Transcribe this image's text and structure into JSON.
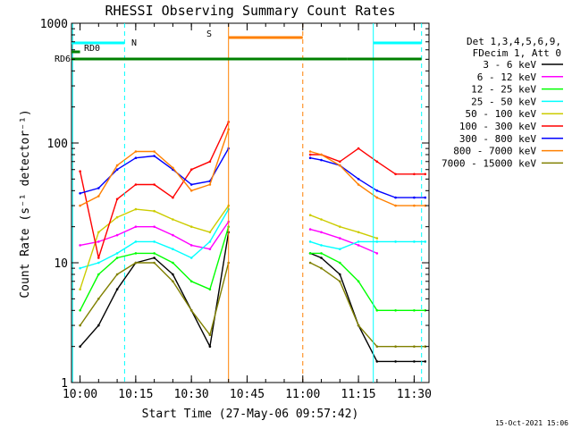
{
  "chart_data": {
    "type": "line",
    "title": "RHESSI Observing Summary Count Rates",
    "xlabel": "Start Time (27-May-06 09:57:42)",
    "ylabel": "Count Rate (s⁻¹ detector⁻¹)",
    "y_scale": "log",
    "ylim": [
      1,
      1000
    ],
    "xlim": [
      "09:57:42",
      "11:34:00"
    ],
    "x_ticks": [
      "10:00",
      "10:15",
      "10:30",
      "10:45",
      "11:00",
      "11:15",
      "11:30"
    ],
    "y_ticks": [
      "1",
      "10",
      "100",
      "1000"
    ],
    "footer_date": "15-Oct-2021 15:06",
    "legend": {
      "header": [
        "Det 1,3,4,5,6,9,",
        "FDecim 1, Att 0"
      ],
      "placement": "right"
    },
    "series": [
      {
        "name": "3 - 6 keV",
        "color": "#000000",
        "x": [
          "10:00",
          "10:05",
          "10:10",
          "10:15",
          "10:20",
          "10:25",
          "10:30",
          "10:35",
          "10:40",
          "11:02",
          "11:05",
          "11:10",
          "11:15",
          "11:20",
          "11:25",
          "11:30",
          "11:33"
        ],
        "values": [
          2,
          3,
          6,
          10,
          11,
          8,
          4,
          2,
          18,
          12,
          11,
          8,
          3,
          1.5,
          1.5,
          1.5,
          1.5
        ]
      },
      {
        "name": "6 - 12 keV",
        "color": "#ff00ff",
        "x": [
          "10:00",
          "10:05",
          "10:10",
          "10:15",
          "10:20",
          "10:25",
          "10:30",
          "10:35",
          "10:40",
          "11:02",
          "11:05",
          "11:10",
          "11:15",
          "11:20"
        ],
        "values": [
          14,
          15,
          17,
          20,
          20,
          17,
          14,
          13,
          22,
          19,
          18,
          16,
          14,
          12
        ]
      },
      {
        "name": "12 - 25 keV",
        "color": "#00ff00",
        "x": [
          "10:00",
          "10:05",
          "10:10",
          "10:15",
          "10:20",
          "10:25",
          "10:30",
          "10:35",
          "10:40",
          "11:02",
          "11:05",
          "11:10",
          "11:15",
          "11:20",
          "11:25",
          "11:30",
          "11:33"
        ],
        "values": [
          4,
          8,
          11,
          12,
          12,
          10,
          7,
          6,
          20,
          12,
          12,
          10,
          7,
          4,
          4,
          4,
          4
        ]
      },
      {
        "name": "25 - 50 keV",
        "color": "#00ffff",
        "x": [
          "10:00",
          "10:05",
          "10:10",
          "10:15",
          "10:20",
          "10:25",
          "10:30",
          "10:35",
          "10:40",
          "11:02",
          "11:05",
          "11:10",
          "11:15",
          "11:20",
          "11:25",
          "11:30",
          "11:33"
        ],
        "values": [
          9,
          10,
          12,
          15,
          15,
          13,
          11,
          15,
          28,
          15,
          14,
          13,
          15,
          15,
          15,
          15,
          15
        ]
      },
      {
        "name": "50 - 100 keV",
        "color": "#cccc00",
        "x": [
          "10:00",
          "10:05",
          "10:10",
          "10:15",
          "10:20",
          "10:25",
          "10:30",
          "10:35",
          "10:40",
          "11:02",
          "11:05",
          "11:10",
          "11:15",
          "11:20"
        ],
        "values": [
          6,
          18,
          24,
          28,
          27,
          23,
          20,
          18,
          30,
          25,
          23,
          20,
          18,
          16
        ]
      },
      {
        "name": "100 - 300 keV",
        "color": "#ff0000",
        "x": [
          "10:00",
          "10:05",
          "10:10",
          "10:15",
          "10:20",
          "10:25",
          "10:30",
          "10:35",
          "10:40",
          "11:02",
          "11:05",
          "11:10",
          "11:15",
          "11:20",
          "11:25",
          "11:30",
          "11:33"
        ],
        "values": [
          58,
          11,
          34,
          45,
          45,
          35,
          60,
          70,
          150,
          80,
          80,
          70,
          90,
          70,
          55,
          55,
          55
        ]
      },
      {
        "name": "300 - 800 keV",
        "color": "#0000ff",
        "x": [
          "10:00",
          "10:05",
          "10:10",
          "10:15",
          "10:20",
          "10:25",
          "10:30",
          "10:35",
          "10:40",
          "11:02",
          "11:05",
          "11:10",
          "11:15",
          "11:20",
          "11:25",
          "11:30",
          "11:33"
        ],
        "values": [
          38,
          42,
          60,
          75,
          78,
          60,
          45,
          48,
          90,
          75,
          72,
          65,
          50,
          40,
          35,
          35,
          35
        ]
      },
      {
        "name": "800 - 7000 keV",
        "color": "#ff8000",
        "x": [
          "10:00",
          "10:05",
          "10:10",
          "10:15",
          "10:20",
          "10:25",
          "10:30",
          "10:35",
          "10:40",
          "11:02",
          "11:05",
          "11:10",
          "11:15",
          "11:20",
          "11:25",
          "11:30",
          "11:33"
        ],
        "values": [
          30,
          36,
          65,
          85,
          85,
          62,
          40,
          45,
          130,
          85,
          80,
          65,
          45,
          35,
          30,
          30,
          30
        ]
      },
      {
        "name": "7000 - 15000 keV",
        "color": "#808000",
        "x": [
          "10:00",
          "10:05",
          "10:10",
          "10:15",
          "10:20",
          "10:25",
          "10:30",
          "10:35",
          "10:40",
          "11:02",
          "11:05",
          "11:10",
          "11:15",
          "11:20",
          "11:25",
          "11:30",
          "11:33"
        ],
        "values": [
          3,
          5,
          8,
          10,
          10,
          7,
          4,
          2.5,
          10,
          10,
          9,
          7,
          3,
          2,
          2,
          2,
          2
        ]
      }
    ],
    "flag_bars": [
      {
        "label": "N",
        "color": "#00ffff",
        "segments": [
          [
            "09:57:42",
            "10:12"
          ],
          [
            "11:19",
            "11:32"
          ]
        ]
      },
      {
        "label": "RD0",
        "color": "#008000",
        "segments": [
          [
            "09:57:42",
            "10:00"
          ]
        ]
      },
      {
        "label": "RD6",
        "color": "#008000",
        "segments": [
          [
            "09:57:42",
            "10:29"
          ],
          [
            "10:29",
            "11:00"
          ],
          [
            "11:00",
            "11:12"
          ],
          [
            "11:12",
            "11:32"
          ]
        ]
      },
      {
        "label": "S",
        "color": "#ff8000",
        "segments": [
          [
            "10:40",
            "11:00"
          ]
        ]
      }
    ],
    "vertical_markers": [
      {
        "time": "09:58",
        "color": "#00ffff",
        "style": "solid"
      },
      {
        "time": "10:12",
        "color": "#00ffff",
        "style": "dashed"
      },
      {
        "time": "10:40",
        "color": "#ff8000",
        "style": "solid"
      },
      {
        "time": "11:00",
        "color": "#ff8000",
        "style": "dashed"
      },
      {
        "time": "11:19",
        "color": "#00ffff",
        "style": "solid"
      },
      {
        "time": "11:32",
        "color": "#00ffff",
        "style": "dashed"
      }
    ]
  }
}
